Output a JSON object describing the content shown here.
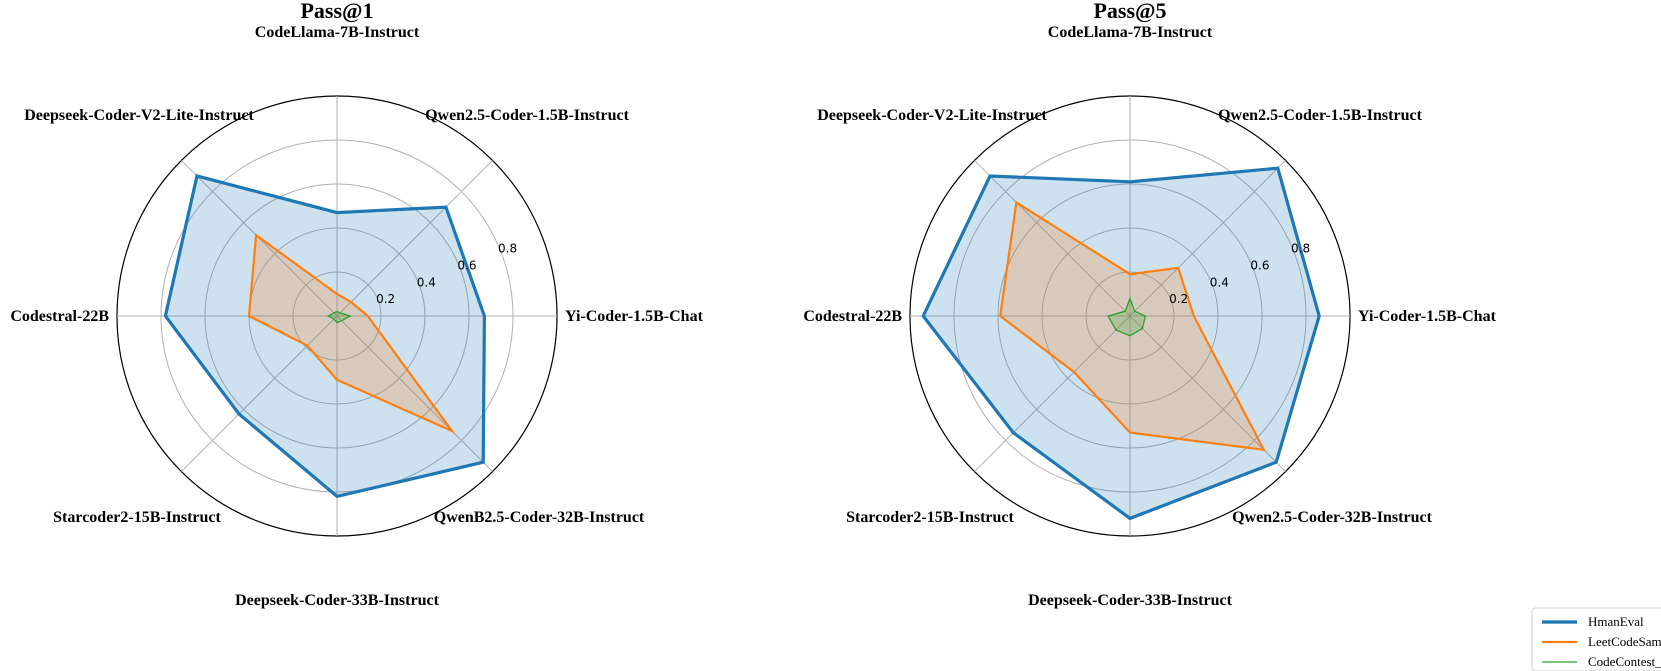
{
  "chart_data": [
    {
      "type": "radar",
      "title": "Pass@1",
      "axes": [
        "Yi-Coder-1.5B-Chat",
        "Qwen2.5-Coder-1.5B-Instruct",
        "CodeLlama-7B-Instruct",
        "Deepseek-Coder-V2-Lite-Instruct",
        "Codestral-22B",
        "Starcoder2-15B-Instruct",
        "Deepseek-Coder-33B-Instruct",
        "QwenB2.5-Coder-32B-Instruct"
      ],
      "rlim": [
        0,
        1
      ],
      "r_ticks": [
        "0.2",
        "0.4",
        "0.6",
        "0.8"
      ],
      "grid": true,
      "series": [
        {
          "name": "HmanEval",
          "color": "#1f77b4",
          "fill": true,
          "values": [
            0.67,
            0.7,
            0.47,
            0.9,
            0.78,
            0.63,
            0.82,
            0.94
          ]
        },
        {
          "name": "LeetCodeSam",
          "color": "#ff7f0e",
          "fill": true,
          "values": [
            0.14,
            0.09,
            0.1,
            0.52,
            0.4,
            0.19,
            0.29,
            0.74
          ]
        },
        {
          "name": "CodeContest_",
          "color": "#2ca02c",
          "fill": true,
          "values": [
            0.06,
            0.02,
            0.02,
            0.02,
            0.04,
            0.02,
            0.03,
            0.03
          ]
        }
      ]
    },
    {
      "type": "radar",
      "title": "Pass@5",
      "axes": [
        "Yi-Coder-1.5B-Chat",
        "Qwen2.5-Coder-1.5B-Instruct",
        "CodeLlama-7B-Instruct",
        "Deepseek-Coder-V2-Lite-Instruct",
        "Codestral-22B",
        "Starcoder2-15B-Instruct",
        "Deepseek-Coder-33B-Instruct",
        "Qwen2.5-Coder-32B-Instruct"
      ],
      "rlim": [
        0,
        1
      ],
      "r_ticks": [
        "0.2",
        "0.4",
        "0.6",
        "0.8"
      ],
      "grid": true,
      "series": [
        {
          "name": "HmanEval",
          "color": "#1f77b4",
          "fill": true,
          "values": [
            0.86,
            0.95,
            0.61,
            0.9,
            0.94,
            0.75,
            0.92,
            0.94
          ]
        },
        {
          "name": "LeetCodeSam",
          "color": "#ff7f0e",
          "fill": true,
          "values": [
            0.29,
            0.31,
            0.19,
            0.73,
            0.59,
            0.36,
            0.53,
            0.86
          ]
        },
        {
          "name": "CodeContest_",
          "color": "#2ca02c",
          "fill": true,
          "values": [
            0.07,
            0.03,
            0.08,
            0.03,
            0.1,
            0.09,
            0.09,
            0.08
          ]
        }
      ]
    }
  ],
  "legend": {
    "placement": "bottom-right",
    "entries": [
      {
        "name": "HmanEval",
        "color": "#1f77b4"
      },
      {
        "name": "LeetCodeSam",
        "color": "#ff7f0e"
      },
      {
        "name": "CodeContest_",
        "color": "#2ca02c"
      }
    ]
  }
}
